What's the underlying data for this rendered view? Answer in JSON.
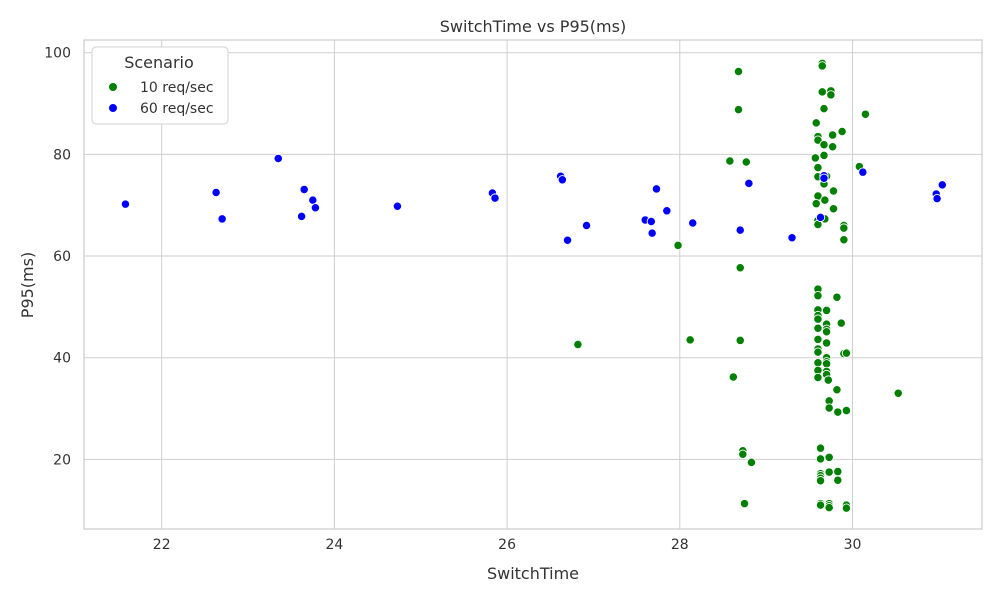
{
  "chart_data": {
    "type": "scatter",
    "title": "SwitchTime vs P95(ms)",
    "xlabel": "SwitchTime",
    "ylabel": "P95(ms)",
    "xlim": [
      21.1,
      31.5
    ],
    "ylim": [
      6.3,
      102.5
    ],
    "xticks": [
      22,
      24,
      26,
      28,
      30
    ],
    "yticks": [
      20,
      40,
      60,
      80,
      100
    ],
    "grid": true,
    "legend": {
      "title": "Scenario",
      "placement": "top-left"
    },
    "series": [
      {
        "name": "10 req/sec",
        "color": "#008000",
        "points": [
          [
            28.68,
            96.3
          ],
          [
            29.65,
            97.9
          ],
          [
            29.65,
            97.4
          ],
          [
            29.65,
            92.3
          ],
          [
            29.75,
            92.5
          ],
          [
            29.75,
            91.7
          ],
          [
            29.67,
            89.0
          ],
          [
            28.68,
            88.8
          ],
          [
            30.15,
            87.9
          ],
          [
            29.58,
            86.2
          ],
          [
            29.88,
            84.5
          ],
          [
            29.6,
            83.5
          ],
          [
            29.6,
            82.8
          ],
          [
            29.77,
            83.8
          ],
          [
            29.67,
            81.9
          ],
          [
            29.77,
            81.5
          ],
          [
            29.67,
            79.8
          ],
          [
            29.57,
            79.3
          ],
          [
            28.58,
            78.7
          ],
          [
            28.77,
            78.5
          ],
          [
            29.6,
            77.4
          ],
          [
            30.08,
            77.6
          ],
          [
            29.6,
            75.6
          ],
          [
            29.7,
            75.7
          ],
          [
            29.67,
            74.2
          ],
          [
            29.78,
            72.8
          ],
          [
            29.6,
            71.8
          ],
          [
            29.68,
            71.0
          ],
          [
            29.58,
            70.3
          ],
          [
            29.78,
            69.3
          ],
          [
            29.6,
            67.0
          ],
          [
            29.68,
            67.3
          ],
          [
            29.6,
            66.2
          ],
          [
            29.9,
            66.0
          ],
          [
            29.9,
            65.5
          ],
          [
            29.9,
            63.2
          ],
          [
            27.98,
            62.1
          ],
          [
            28.7,
            57.7
          ],
          [
            29.6,
            53.5
          ],
          [
            29.6,
            52.2
          ],
          [
            29.82,
            51.9
          ],
          [
            29.6,
            49.4
          ],
          [
            29.7,
            49.3
          ],
          [
            29.6,
            48.3
          ],
          [
            29.6,
            47.6
          ],
          [
            29.7,
            46.6
          ],
          [
            29.87,
            46.8
          ],
          [
            29.6,
            45.8
          ],
          [
            29.7,
            45.6
          ],
          [
            29.7,
            45.1
          ],
          [
            29.6,
            43.6
          ],
          [
            28.12,
            43.5
          ],
          [
            28.7,
            43.4
          ],
          [
            29.7,
            42.9
          ],
          [
            26.82,
            42.6
          ],
          [
            29.6,
            41.7
          ],
          [
            29.6,
            41.1
          ],
          [
            29.9,
            40.8
          ],
          [
            29.93,
            40.9
          ],
          [
            29.7,
            40.0
          ],
          [
            29.6,
            39.0
          ],
          [
            29.7,
            39.2
          ],
          [
            29.7,
            38.8
          ],
          [
            29.6,
            37.5
          ],
          [
            29.7,
            37.3
          ],
          [
            29.7,
            36.7
          ],
          [
            29.6,
            36.1
          ],
          [
            28.62,
            36.2
          ],
          [
            29.72,
            35.6
          ],
          [
            29.82,
            33.7
          ],
          [
            30.53,
            33.0
          ],
          [
            29.73,
            31.5
          ],
          [
            29.73,
            30.1
          ],
          [
            29.83,
            29.3
          ],
          [
            29.93,
            29.6
          ],
          [
            29.63,
            22.2
          ],
          [
            28.73,
            21.7
          ],
          [
            28.73,
            21.0
          ],
          [
            29.73,
            20.4
          ],
          [
            29.63,
            20.1
          ],
          [
            28.83,
            19.4
          ],
          [
            29.63,
            17.2
          ],
          [
            29.63,
            16.8
          ],
          [
            29.73,
            17.5
          ],
          [
            29.83,
            17.6
          ],
          [
            29.63,
            16.3
          ],
          [
            29.63,
            15.8
          ],
          [
            29.83,
            15.9
          ],
          [
            28.75,
            11.3
          ],
          [
            29.63,
            11.3
          ],
          [
            29.73,
            11.3
          ],
          [
            29.73,
            10.9
          ],
          [
            29.93,
            11.0
          ],
          [
            29.63,
            11.0
          ],
          [
            29.73,
            10.5
          ],
          [
            29.93,
            10.4
          ]
        ]
      },
      {
        "name": "60 req/sec",
        "color": "#0000ff",
        "points": [
          [
            21.58,
            70.2
          ],
          [
            22.63,
            72.5
          ],
          [
            22.7,
            67.3
          ],
          [
            23.35,
            79.2
          ],
          [
            23.65,
            73.1
          ],
          [
            23.62,
            67.8
          ],
          [
            23.75,
            71.0
          ],
          [
            23.78,
            69.5
          ],
          [
            24.73,
            69.8
          ],
          [
            25.83,
            72.4
          ],
          [
            25.86,
            71.4
          ],
          [
            26.62,
            75.7
          ],
          [
            26.64,
            75.0
          ],
          [
            26.7,
            63.1
          ],
          [
            26.92,
            66.0
          ],
          [
            27.6,
            67.1
          ],
          [
            27.67,
            66.8
          ],
          [
            27.68,
            64.5
          ],
          [
            27.73,
            73.2
          ],
          [
            27.85,
            68.9
          ],
          [
            28.15,
            66.5
          ],
          [
            28.7,
            65.1
          ],
          [
            28.8,
            74.3
          ],
          [
            29.3,
            63.6
          ],
          [
            29.63,
            67.6
          ],
          [
            29.67,
            75.8
          ],
          [
            29.67,
            75.3
          ],
          [
            30.12,
            76.5
          ],
          [
            30.97,
            72.2
          ],
          [
            30.98,
            71.3
          ],
          [
            31.04,
            74.0
          ]
        ]
      }
    ]
  }
}
